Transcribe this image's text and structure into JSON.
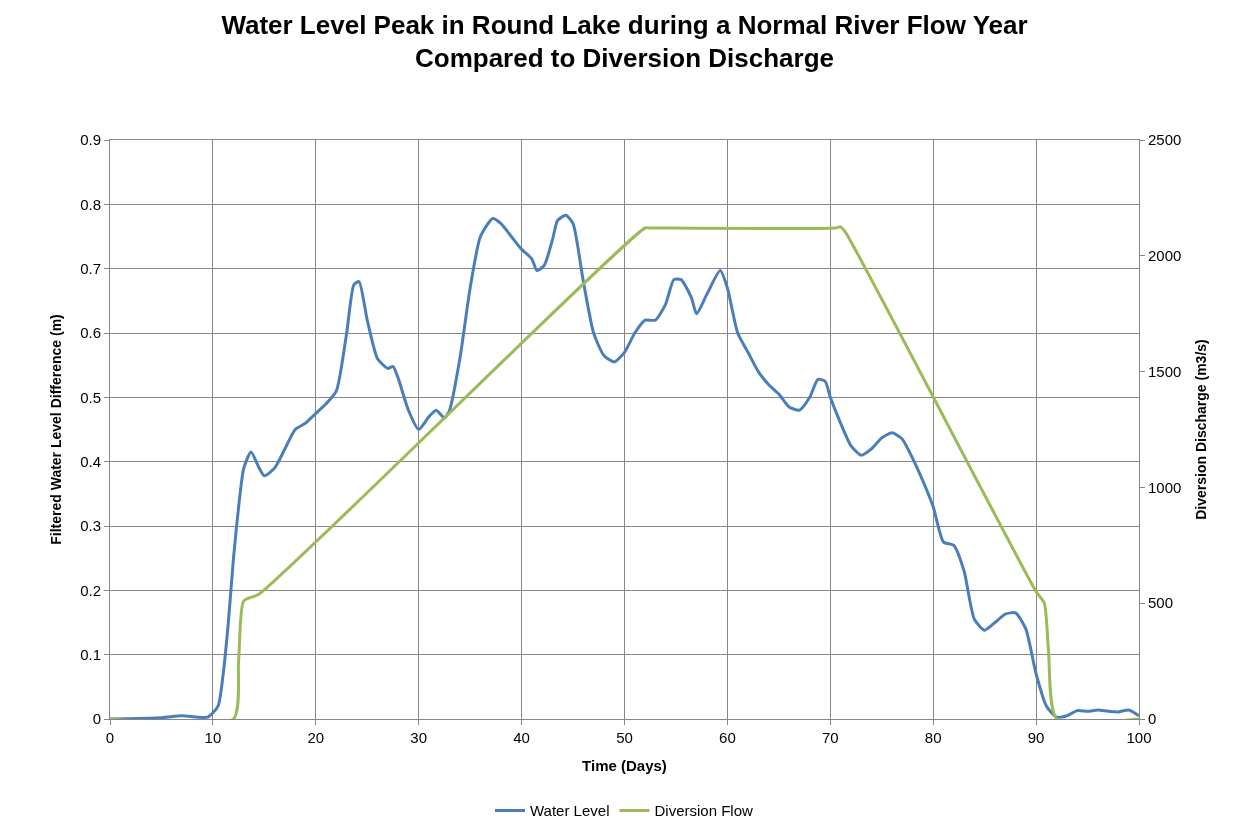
{
  "chart_data": {
    "type": "line",
    "title": "Water Level Peak in Round Lake during a Normal River Flow Year\nCompared to Diversion Discharge",
    "xlabel": "Time (Days)",
    "ylabel": "Filtered Water Level Difference (m)",
    "y2label": "Diversion Discharge (m3/s)",
    "xlim": [
      0,
      100
    ],
    "xticks": [
      0,
      10,
      20,
      30,
      40,
      50,
      60,
      70,
      80,
      90,
      100
    ],
    "ylim": [
      0,
      0.9
    ],
    "yticks": [
      0,
      0.1,
      0.2,
      0.3,
      0.4,
      0.5,
      0.6,
      0.7,
      0.8,
      0.9
    ],
    "y2lim": [
      0,
      2500
    ],
    "y2ticks": [
      0,
      500,
      1000,
      1500,
      2000,
      2500
    ],
    "grid": true,
    "legend": "bottom",
    "marker": "none",
    "line_style": "solid",
    "series": [
      {
        "name": "Water Level",
        "color": "#4a7ebb",
        "x": [
          0,
          5,
          7,
          9.5,
          10.5,
          11,
          11.5,
          12,
          12.5,
          13,
          13.7,
          14.5,
          15,
          16,
          17,
          18,
          19,
          20,
          21,
          22,
          23,
          23.7,
          24.2,
          25,
          26,
          27,
          27.5,
          28,
          29,
          30,
          31,
          31.7,
          32.5,
          33,
          34,
          35,
          36,
          37.2,
          38,
          39,
          40,
          41,
          41.5,
          42.2,
          43,
          43.5,
          44.3,
          45,
          46,
          47,
          48,
          49,
          50,
          51,
          52,
          53,
          54,
          54.8,
          55.5,
          56.5,
          57,
          58,
          59.3,
          60,
          61,
          62,
          63,
          64,
          65,
          66,
          67,
          68,
          68.8,
          69.5,
          70,
          71,
          72,
          73,
          74,
          75,
          76,
          77,
          78,
          79,
          80,
          81,
          82,
          83,
          84,
          85,
          86,
          87,
          88,
          89,
          90,
          91,
          92,
          93,
          94,
          95,
          96,
          97,
          98,
          99,
          100
        ],
        "values": [
          0,
          0.002,
          0.005,
          0.003,
          0.02,
          0.07,
          0.15,
          0.25,
          0.33,
          0.39,
          0.415,
          0.39,
          0.378,
          0.39,
          0.42,
          0.45,
          0.46,
          0.475,
          0.49,
          0.51,
          0.6,
          0.675,
          0.68,
          0.62,
          0.56,
          0.545,
          0.548,
          0.53,
          0.48,
          0.45,
          0.47,
          0.48,
          0.468,
          0.48,
          0.56,
          0.67,
          0.75,
          0.778,
          0.77,
          0.75,
          0.73,
          0.715,
          0.697,
          0.705,
          0.745,
          0.775,
          0.783,
          0.77,
          0.68,
          0.6,
          0.565,
          0.555,
          0.57,
          0.6,
          0.62,
          0.62,
          0.645,
          0.683,
          0.683,
          0.655,
          0.63,
          0.66,
          0.697,
          0.67,
          0.6,
          0.57,
          0.54,
          0.52,
          0.505,
          0.485,
          0.48,
          0.5,
          0.528,
          0.525,
          0.5,
          0.46,
          0.425,
          0.41,
          0.42,
          0.437,
          0.445,
          0.435,
          0.405,
          0.37,
          0.33,
          0.275,
          0.27,
          0.23,
          0.155,
          0.138,
          0.15,
          0.163,
          0.165,
          0.14,
          0.07,
          0.02,
          0.003,
          0.005,
          0.013,
          0.012,
          0.014,
          0.012,
          0.011,
          0.014,
          0.005
        ]
      },
      {
        "name": "Diversion Flow",
        "color": "#9bbb59",
        "axis": "y2",
        "x": [
          0,
          12,
          12.5,
          13,
          14.5,
          52,
          52.5,
          70.5,
          71,
          71.5,
          90,
          90.8,
          91.2,
          92,
          100
        ],
        "values": [
          0,
          0,
          250,
          510,
          540,
          2120,
          2120,
          2120,
          2125,
          2100,
          550,
          500,
          300,
          0,
          0
        ]
      }
    ]
  }
}
